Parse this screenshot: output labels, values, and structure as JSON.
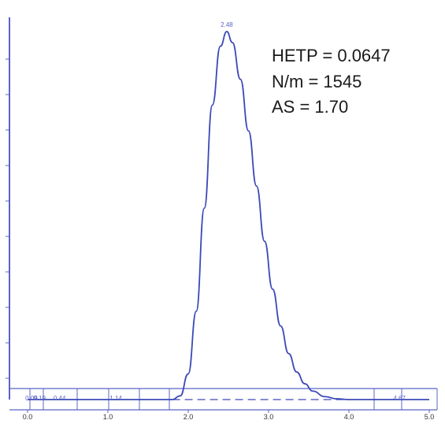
{
  "chart_data": {
    "type": "line",
    "xlim": [
      0.0,
      5.0
    ],
    "x_ticks": [
      {
        "value": 0.0,
        "label": "0.0"
      },
      {
        "value": 1.0,
        "label": "1.0"
      },
      {
        "value": 2.0,
        "label": "2.0"
      },
      {
        "value": 3.0,
        "label": "3.0"
      },
      {
        "value": 4.0,
        "label": "4.0"
      },
      {
        "value": 5.0,
        "label": "5.0"
      }
    ],
    "peak": {
      "apex_x": 2.48,
      "apex_label": "2.48"
    },
    "series": [
      {
        "x": [
          0.0,
          1.0,
          1.8,
          1.9,
          2.0,
          2.1,
          2.2,
          2.3,
          2.4,
          2.48,
          2.55,
          2.65,
          2.75,
          2.85,
          2.95,
          3.05,
          3.15,
          3.25,
          3.35,
          3.45,
          3.55,
          3.7,
          3.85,
          4.0,
          5.0
        ],
        "y": [
          0.0,
          0.0,
          0.0,
          0.01,
          0.07,
          0.24,
          0.52,
          0.8,
          0.96,
          1.0,
          0.97,
          0.87,
          0.73,
          0.58,
          0.43,
          0.3,
          0.2,
          0.125,
          0.075,
          0.043,
          0.023,
          0.008,
          0.002,
          0.0,
          0.0
        ]
      }
    ],
    "baseline_labels": [
      {
        "x": 0.09,
        "label": "0.09"
      },
      {
        "x": 0.19,
        "label": "0.19"
      },
      {
        "x": 0.44,
        "label": "0.44"
      },
      {
        "x": 1.14,
        "label": "1.14"
      },
      {
        "x": 4.67,
        "label": "4.67"
      }
    ],
    "grid": false
  },
  "annotations": {
    "hetp": "HETP = 0.0647",
    "plates": "N/m = 1545",
    "asymmetry": "AS = 1.70"
  },
  "colors": {
    "trace": "#3c49b8",
    "axis": "#5a64c4",
    "text": "#1a1a1a",
    "tick_label": "#333333"
  }
}
